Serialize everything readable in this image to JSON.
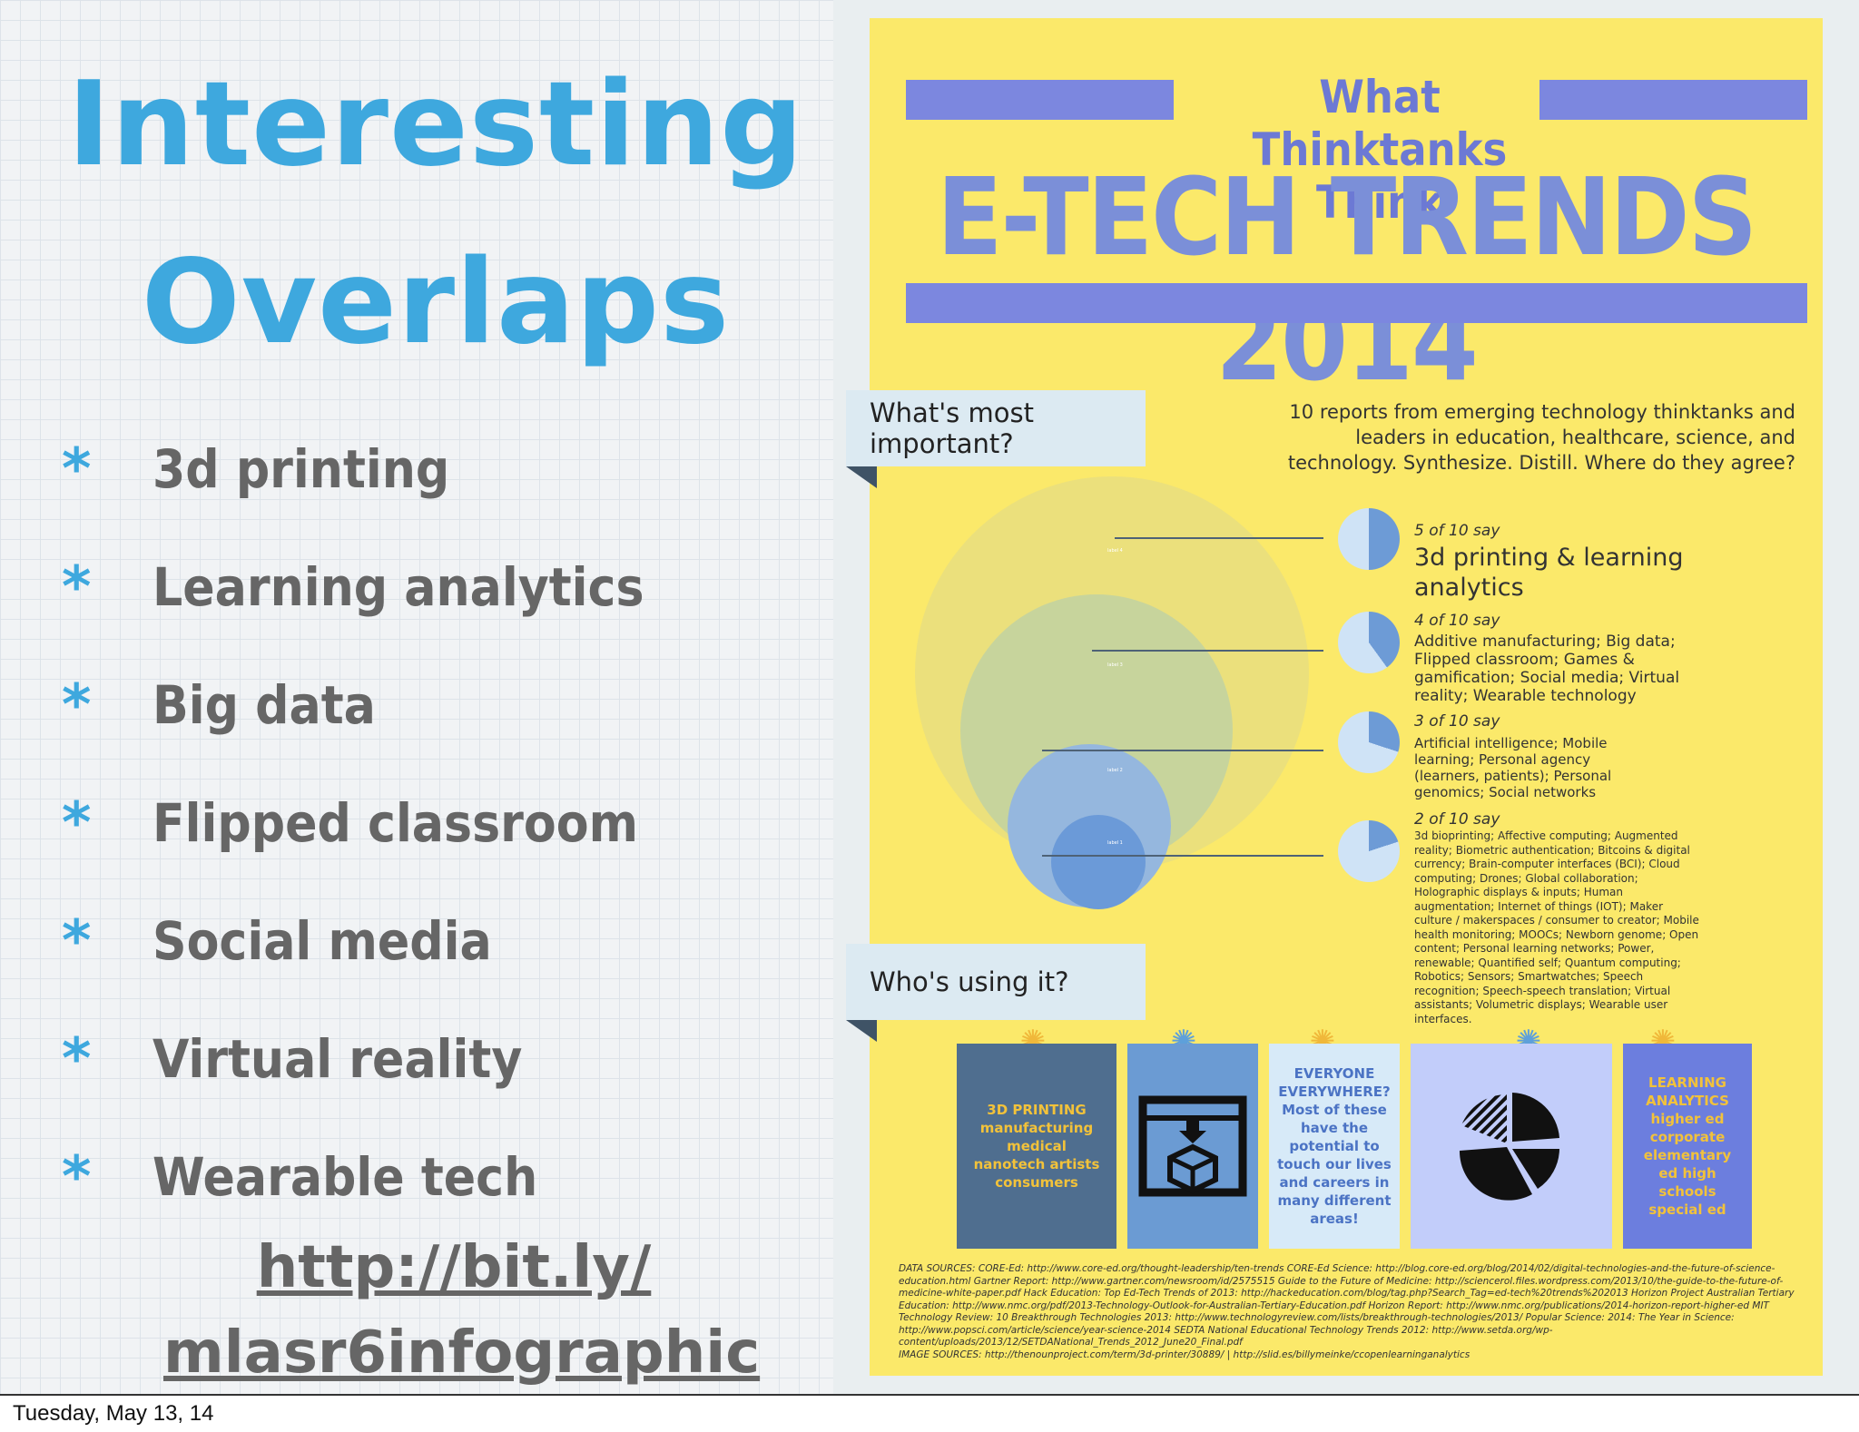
{
  "slide": {
    "title_line1": "Interesting",
    "title_line2": "Overlaps",
    "bullet_marker": "*",
    "bullets": [
      "3d printing",
      "Learning analytics",
      "Big data",
      "Flipped classroom",
      "Social media",
      "Virtual reality",
      "Wearable tech"
    ],
    "link_line1": "http://bit.ly/",
    "link_line2": "mlasr6infographic",
    "footer_date": "Tuesday, May 13, 14"
  },
  "infographic": {
    "top_title": "What Thinktanks Think",
    "big_title": "E-TECH TRENDS 2014",
    "ribbon1": "What's most important?",
    "ribbon2": "Who's using it?",
    "intro": "10 reports from emerging technology thinktanks and leaders in education, healthcare, science, and technology. Synthesize. Distill. Where do they agree?",
    "groups": [
      {
        "say": "5 of 10 say",
        "text": "3d printing & learning analytics",
        "fraction": 0.5
      },
      {
        "say": "4 of 10 say",
        "text": "Additive manufacturing; Big data; Flipped classroom; Games & gamification; Social media; Virtual reality; Wearable technology",
        "fraction": 0.4
      },
      {
        "say": "3 of 10 say",
        "text": "Artificial intelligence; Mobile learning; Personal agency (learners, patients); Personal genomics; Social networks",
        "fraction": 0.3
      },
      {
        "say": "2 of 10 say",
        "text": "3d bioprinting; Affective computing; Augmented reality; Biometric authentication; Bitcoins & digital currency; Brain-computer interfaces (BCI); Cloud computing; Drones; Global collaboration; Holographic displays & inputs; Human augmentation; Internet of things (IOT); Maker culture / makerspaces / consumer to creator; Mobile health monitoring; MOOCs; Newborn genome; Open content; Personal learning networks; Power, renewable; Quantified self; Quantum computing; Robotics; Sensors; Smartwatches; Speech recognition; Speech-speech translation; Virtual assistants; Volumetric displays; Wearable user interfaces.",
        "fraction": 0.2
      }
    ],
    "circle_labels": [
      "label 1",
      "label 2",
      "label 3",
      "label 4"
    ],
    "cards": [
      {
        "text": "3D PRINTING manufacturing medical nanotech artists consumers",
        "bg": "#4f6e8f",
        "color": "#f2c23a"
      },
      {
        "text": "",
        "bg": "#6b9bd3",
        "color": "#fff"
      },
      {
        "text": "EVERYONE EVERYWHERE? Most of these have the potential to touch our lives and careers in many different areas!",
        "bg": "#d7eaf8",
        "color": "#4b73c4"
      },
      {
        "text": "",
        "bg": "#c2cdfa",
        "color": "#fff"
      },
      {
        "text": "LEARNING ANALYTICS higher ed corporate elementary ed high schools special ed",
        "bg": "#6c7ede",
        "color": "#f2c23a"
      }
    ],
    "sources": "DATA SOURCES: CORE-Ed: http://www.core-ed.org/thought-leadership/ten-trends CORE-Ed Science: http://blog.core-ed.org/blog/2014/02/digital-technologies-and-the-future-of-science-education.html Gartner Report: http://www.gartner.com/newsroom/id/2575515 Guide to the Future of Medicine: http://sciencerol.files.wordpress.com/2013/10/the-guide-to-the-future-of-medicine-white-paper.pdf Hack Education: Top Ed-Tech Trends of 2013: http://hackeducation.com/blog/tag.php?Search_Tag=ed-tech%20trends%202013 Horizon Project Australian Tertiary Education: http://www.nmc.org/pdf/2013-Technology-Outlook-for-Australian-Tertiary-Education.pdf Horizon Report: http://www.nmc.org/publications/2014-horizon-report-higher-ed MIT Technology Review: 10 Breakthrough Technologies 2013: http://www.technologyreview.com/lists/breakthrough-technologies/2013/ Popular Science: 2014: The Year in Science: http://www.popsci.com/article/science/year-science-2014 SEDTA National Educational Technology Trends 2012: http://www.setda.org/wp-content/uploads/2013/12/SETDANational_Trends_2012_June20_Final.pdf",
    "image_sources": "IMAGE SOURCES: http://thenounproject.com/term/3d-printer/30889/ | http://slid.es/billymeinke/ccopenlearninganalytics",
    "colors": {
      "poster": "#fbe96a",
      "bar": "#7c87df",
      "title": "#7b8fd8",
      "slide_accent": "#3ea8de"
    }
  }
}
